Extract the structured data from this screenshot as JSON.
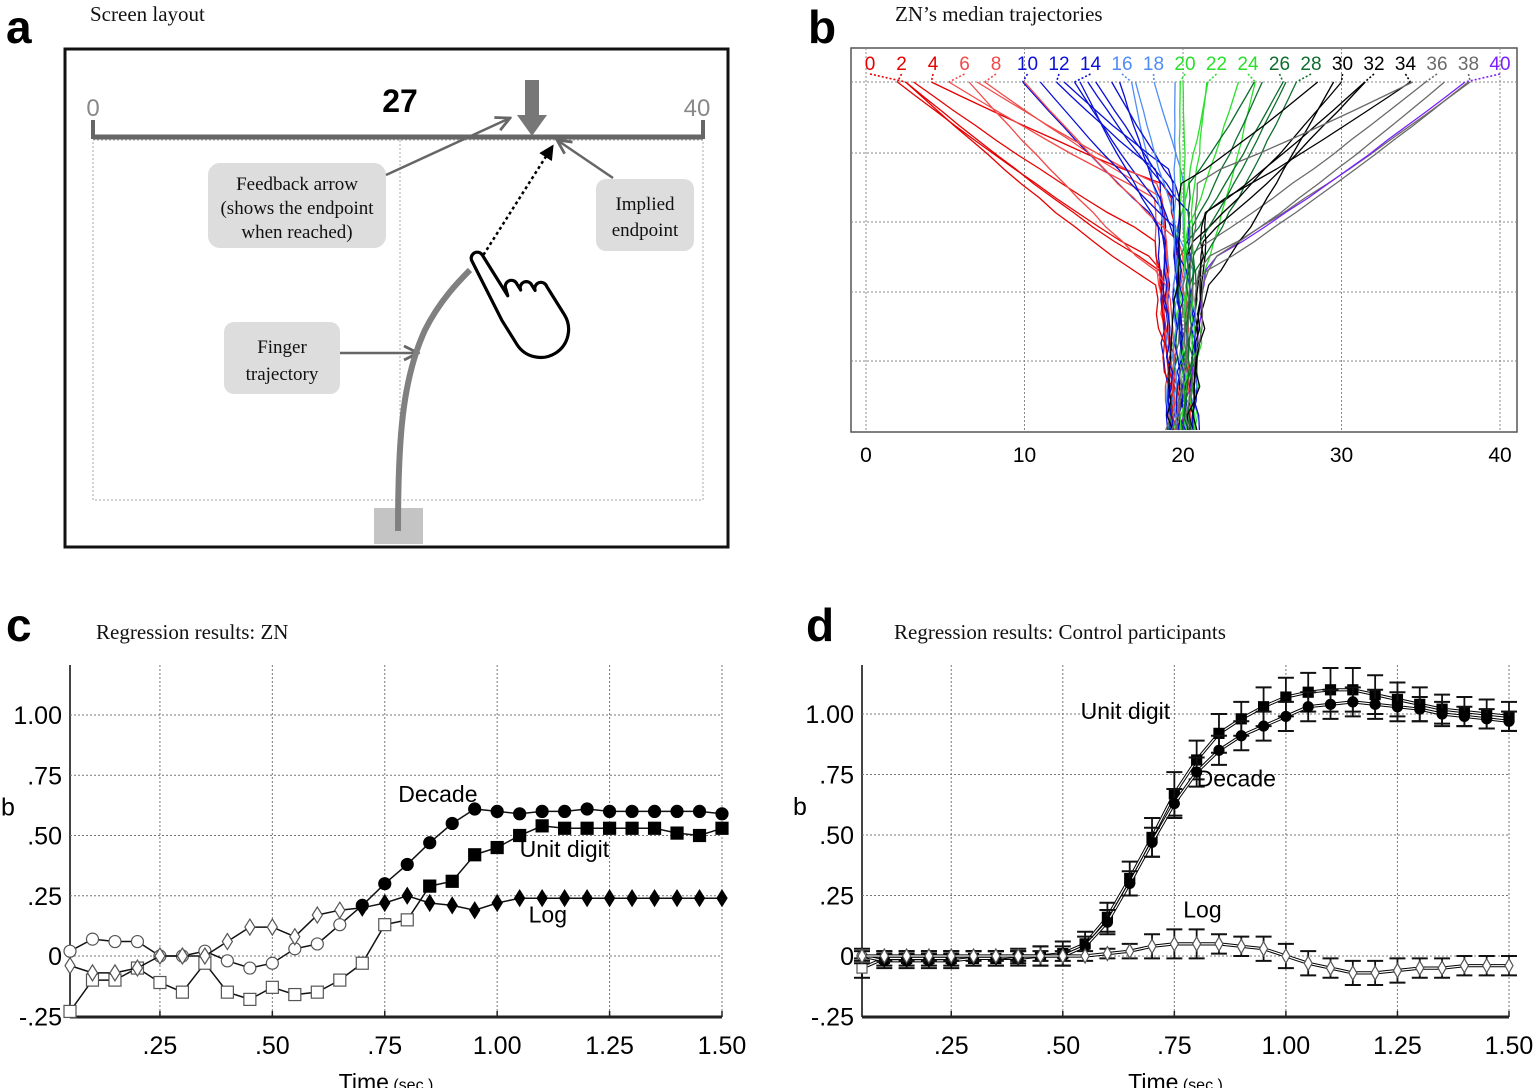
{
  "panels": {
    "a": {
      "letter": "a",
      "title": "Screen layout"
    },
    "b": {
      "letter": "b",
      "title": "ZN’s median trajectories"
    },
    "c": {
      "letter": "c",
      "title": "Regression results: ZN"
    },
    "d": {
      "letter": "d",
      "title": "Regression results: Control participants"
    }
  },
  "screen_layout": {
    "scale_min_label": "0",
    "scale_max_label": "40",
    "target_number": "27",
    "callouts": {
      "feedback_arrow": [
        "Feedback arrow",
        "(shows the endpoint",
        "when reached)"
      ],
      "implied_endpoint": [
        "Implied",
        "endpoint"
      ],
      "finger_trajectory": [
        "Finger",
        "trajectory"
      ]
    },
    "colors": {
      "line": "#666666",
      "callout_bg": "#dddddd",
      "start_box": "#c4c4c4"
    }
  },
  "chart_data": [
    {
      "id": "b",
      "type": "line",
      "title": "ZN’s median trajectories",
      "xlabel": "",
      "ylabel": "",
      "xlim": [
        0,
        40
      ],
      "xticks": [
        "0",
        "10",
        "20",
        "30",
        "40"
      ],
      "grid": true,
      "target_labels": [
        {
          "label": "0",
          "value": 0,
          "color": "#e60000"
        },
        {
          "label": "2",
          "value": 2,
          "color": "#e60000"
        },
        {
          "label": "4",
          "value": 4,
          "color": "#e60000"
        },
        {
          "label": "6",
          "value": 6,
          "color": "#f24a4a"
        },
        {
          "label": "8",
          "value": 8,
          "color": "#f24a4a"
        },
        {
          "label": "10",
          "value": 10,
          "color": "#0a10d6"
        },
        {
          "label": "12",
          "value": 12,
          "color": "#0a10d6"
        },
        {
          "label": "14",
          "value": 14,
          "color": "#0a10d6"
        },
        {
          "label": "16",
          "value": 16,
          "color": "#4f8df5"
        },
        {
          "label": "18",
          "value": 18,
          "color": "#4f8df5"
        },
        {
          "label": "20",
          "value": 20,
          "color": "#2ae02a"
        },
        {
          "label": "22",
          "value": 22,
          "color": "#2ae02a"
        },
        {
          "label": "24",
          "value": 24,
          "color": "#2ae02a"
        },
        {
          "label": "26",
          "value": 26,
          "color": "#0d6e2e"
        },
        {
          "label": "28",
          "value": 28,
          "color": "#0d6e2e"
        },
        {
          "label": "30",
          "value": 30,
          "color": "#000000"
        },
        {
          "label": "32",
          "value": 32,
          "color": "#000000"
        },
        {
          "label": "34",
          "value": 34,
          "color": "#000000"
        },
        {
          "label": "36",
          "value": 36,
          "color": "#6a6a6a"
        },
        {
          "label": "38",
          "value": 38,
          "color": "#6a6a6a"
        },
        {
          "label": "40",
          "value": 40,
          "color": "#7a1fff"
        }
      ],
      "trajectory_endpoints_x": [
        [
          2.5,
          3.0,
          6.5,
          7.0
        ],
        [
          10.0,
          11.0,
          12.5,
          13.5
        ],
        [
          14.0,
          14.5,
          15.5,
          16.0
        ],
        [
          17.0,
          19.5,
          20.0,
          21.5
        ],
        [
          23.5,
          24.5,
          25.0,
          26.5
        ],
        [
          28.5,
          29.5,
          31.5,
          34.5
        ],
        [
          36.5,
          38.0
        ]
      ],
      "start_x_value": 20
    },
    {
      "id": "c",
      "type": "line",
      "title": "Regression results: ZN",
      "xlabel": "Time",
      "xlabel_unit": "(sec.)",
      "ylabel": "b",
      "xlim": [
        0.05,
        1.5
      ],
      "ylim": [
        -0.25,
        1.2
      ],
      "xticks": [
        ".25",
        ".50",
        ".75",
        "1.00",
        "1.25",
        "1.50"
      ],
      "yticks": [
        "-.25",
        "0",
        ".25",
        ".50",
        ".75",
        "1.00"
      ],
      "grid": true,
      "annotations": [
        {
          "text": "Decade",
          "x": 0.78,
          "y": 0.64
        },
        {
          "text": "Unit digit",
          "x": 1.05,
          "y": 0.41
        },
        {
          "text": "Log",
          "x": 1.07,
          "y": 0.14
        }
      ],
      "x": [
        0.05,
        0.1,
        0.15,
        0.2,
        0.25,
        0.3,
        0.35,
        0.4,
        0.45,
        0.5,
        0.55,
        0.6,
        0.65,
        0.7,
        0.75,
        0.8,
        0.85,
        0.9,
        0.95,
        1.0,
        1.05,
        1.1,
        1.15,
        1.2,
        1.25,
        1.3,
        1.35,
        1.4,
        1.45,
        1.5
      ],
      "series": [
        {
          "name": "Decade",
          "marker": "circle",
          "filled_from_x": 0.7,
          "values": [
            0.02,
            0.07,
            0.06,
            0.06,
            0.0,
            0.0,
            0.02,
            -0.02,
            -0.05,
            -0.03,
            0.03,
            0.05,
            0.13,
            0.21,
            0.3,
            0.38,
            0.47,
            0.55,
            0.61,
            0.6,
            0.59,
            0.6,
            0.6,
            0.61,
            0.6,
            0.6,
            0.6,
            0.6,
            0.6,
            0.59
          ]
        },
        {
          "name": "Unit digit",
          "marker": "square",
          "filled_from_x": 0.85,
          "values": [
            -0.23,
            -0.1,
            -0.1,
            -0.05,
            -0.11,
            -0.15,
            -0.03,
            -0.15,
            -0.18,
            -0.13,
            -0.16,
            -0.15,
            -0.1,
            -0.03,
            0.13,
            0.15,
            0.29,
            0.31,
            0.42,
            0.45,
            0.5,
            0.54,
            0.53,
            0.53,
            0.53,
            0.53,
            0.53,
            0.51,
            0.5,
            0.53
          ]
        },
        {
          "name": "Log",
          "marker": "diamond",
          "filled_from_x": 0.7,
          "values": [
            -0.04,
            -0.07,
            -0.07,
            -0.05,
            0.0,
            0.0,
            0.0,
            0.06,
            0.12,
            0.12,
            0.08,
            0.17,
            0.19,
            0.2,
            0.22,
            0.25,
            0.22,
            0.21,
            0.19,
            0.22,
            0.24,
            0.24,
            0.24,
            0.24,
            0.24,
            0.24,
            0.24,
            0.24,
            0.24,
            0.24
          ]
        }
      ]
    },
    {
      "id": "d",
      "type": "line",
      "title": "Regression results: Control participants",
      "xlabel": "Time",
      "xlabel_unit": "(sec.)",
      "ylabel": "b",
      "xlim": [
        0.05,
        1.5
      ],
      "ylim": [
        -0.25,
        1.2
      ],
      "xticks": [
        ".25",
        ".50",
        ".75",
        "1.00",
        "1.25",
        "1.50"
      ],
      "yticks": [
        "-.25",
        "0",
        ".25",
        ".50",
        ".75",
        "1.00"
      ],
      "grid": true,
      "error_bars": true,
      "annotations": [
        {
          "text": "Unit digit",
          "x": 0.54,
          "y": 0.98
        },
        {
          "text": "Decade",
          "x": 0.8,
          "y": 0.7
        },
        {
          "text": "Log",
          "x": 0.77,
          "y": 0.16
        }
      ],
      "x": [
        0.05,
        0.1,
        0.15,
        0.2,
        0.25,
        0.3,
        0.35,
        0.4,
        0.45,
        0.5,
        0.55,
        0.6,
        0.65,
        0.7,
        0.75,
        0.8,
        0.85,
        0.9,
        0.95,
        1.0,
        1.05,
        1.1,
        1.15,
        1.2,
        1.25,
        1.3,
        1.35,
        1.4,
        1.45,
        1.5
      ],
      "series": [
        {
          "name": "Unit digit",
          "marker": "square",
          "filled_from_x": 0.1,
          "values": [
            -0.05,
            -0.01,
            -0.01,
            -0.01,
            -0.01,
            -0.01,
            -0.01,
            -0.01,
            0.0,
            0.01,
            0.05,
            0.16,
            0.32,
            0.49,
            0.67,
            0.81,
            0.92,
            0.98,
            1.03,
            1.07,
            1.09,
            1.1,
            1.1,
            1.08,
            1.06,
            1.04,
            1.02,
            1.01,
            1.0,
            0.99
          ],
          "errors": [
            0.04,
            0.03,
            0.03,
            0.03,
            0.03,
            0.03,
            0.03,
            0.03,
            0.04,
            0.05,
            0.05,
            0.06,
            0.07,
            0.08,
            0.09,
            0.08,
            0.08,
            0.07,
            0.08,
            0.08,
            0.08,
            0.09,
            0.09,
            0.08,
            0.07,
            0.07,
            0.06,
            0.06,
            0.06,
            0.06
          ]
        },
        {
          "name": "Decade",
          "marker": "circle",
          "filled_from_x": 0.1,
          "values": [
            0.0,
            -0.02,
            -0.02,
            -0.02,
            -0.02,
            -0.01,
            -0.01,
            0.0,
            0.0,
            0.0,
            0.04,
            0.14,
            0.3,
            0.47,
            0.63,
            0.76,
            0.85,
            0.91,
            0.95,
            0.99,
            1.03,
            1.04,
            1.05,
            1.04,
            1.03,
            1.02,
            1.0,
            0.99,
            0.98,
            0.97
          ],
          "errors": [
            0.03,
            0.03,
            0.03,
            0.03,
            0.03,
            0.03,
            0.03,
            0.03,
            0.04,
            0.04,
            0.04,
            0.05,
            0.05,
            0.06,
            0.06,
            0.06,
            0.06,
            0.06,
            0.06,
            0.06,
            0.06,
            0.06,
            0.06,
            0.06,
            0.06,
            0.05,
            0.05,
            0.04,
            0.04,
            0.04
          ]
        },
        {
          "name": "Log",
          "marker": "diamond",
          "filled_from_x": 99,
          "values": [
            0.0,
            0.0,
            0.0,
            0.0,
            0.0,
            0.0,
            0.0,
            0.0,
            0.0,
            0.0,
            0.0,
            0.01,
            0.02,
            0.04,
            0.05,
            0.05,
            0.05,
            0.04,
            0.03,
            0.0,
            -0.03,
            -0.05,
            -0.07,
            -0.07,
            -0.06,
            -0.05,
            -0.05,
            -0.04,
            -0.04,
            -0.04
          ],
          "errors": [
            0.02,
            0.02,
            0.02,
            0.02,
            0.02,
            0.02,
            0.02,
            0.02,
            0.02,
            0.02,
            0.02,
            0.02,
            0.03,
            0.05,
            0.06,
            0.06,
            0.04,
            0.04,
            0.05,
            0.05,
            0.05,
            0.04,
            0.05,
            0.05,
            0.05,
            0.04,
            0.04,
            0.04,
            0.04,
            0.04
          ]
        }
      ]
    }
  ]
}
